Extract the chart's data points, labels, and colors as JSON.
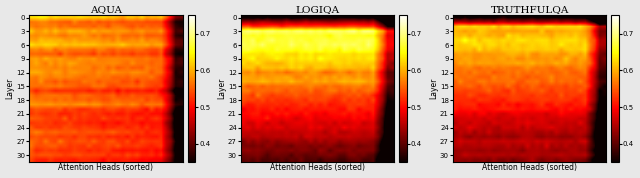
{
  "titles": [
    "AQUA",
    "LOGIQA",
    "TRUTHFULQA"
  ],
  "xlabel": "Attention Heads (sorted)",
  "ylabel": "Layer",
  "n_layers": 32,
  "n_heads": 32,
  "vmin": 0.35,
  "vmax": 0.75,
  "colormap": "hot",
  "yticks": [
    0,
    3,
    6,
    9,
    12,
    15,
    18,
    21,
    24,
    27,
    30
  ],
  "colorbar_ticks": [
    0.4,
    0.5,
    0.6,
    0.7
  ],
  "figsize": [
    6.4,
    1.78
  ],
  "dpi": 100,
  "background_color": "#e8e8e8"
}
